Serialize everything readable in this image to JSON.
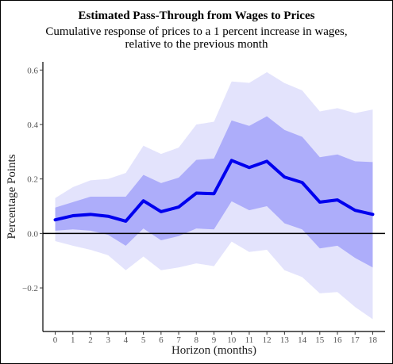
{
  "chart_data": {
    "type": "line",
    "title": "Estimated Pass-Through from Wages to Prices",
    "subtitle": "Cumulative response of prices to a 1 percent increase in wages, relative to the previous month",
    "xlabel": "Horizon (months)",
    "ylabel": "Percentage Points",
    "x": [
      0,
      1,
      2,
      3,
      4,
      5,
      6,
      7,
      8,
      9,
      10,
      11,
      12,
      13,
      14,
      15,
      16,
      17,
      18
    ],
    "xlim": [
      -0.7,
      18.7
    ],
    "ylim": [
      -0.36,
      0.63
    ],
    "yticks": [
      -0.2,
      0.0,
      0.2,
      0.4,
      0.6
    ],
    "yticklabels": [
      "−0.2",
      "0.0",
      "0.2",
      "0.4",
      "0.6"
    ],
    "grid": false,
    "series": [
      {
        "values": [
          0.05,
          0.065,
          0.07,
          0.063,
          0.045,
          0.12,
          0.08,
          0.097,
          0.148,
          0.146,
          0.268,
          0.242,
          0.265,
          0.207,
          0.187,
          0.115,
          0.123,
          0.085,
          0.07
        ]
      }
    ],
    "bands": {
      "inner_upper": [
        0.095,
        0.115,
        0.135,
        0.135,
        0.135,
        0.215,
        0.185,
        0.205,
        0.27,
        0.275,
        0.415,
        0.395,
        0.43,
        0.38,
        0.355,
        0.28,
        0.29,
        0.265,
        0.262
      ],
      "inner_lower": [
        0.01,
        0.015,
        0.01,
        -0.005,
        -0.045,
        0.018,
        -0.025,
        -0.01,
        0.018,
        0.015,
        0.118,
        0.085,
        0.1,
        0.037,
        0.015,
        -0.055,
        -0.045,
        -0.09,
        -0.125
      ],
      "outer_upper": [
        0.13,
        0.17,
        0.195,
        0.2,
        0.222,
        0.322,
        0.292,
        0.315,
        0.4,
        0.41,
        0.558,
        0.553,
        0.592,
        0.552,
        0.525,
        0.448,
        0.46,
        0.442,
        0.455
      ],
      "outer_lower": [
        -0.028,
        -0.045,
        -0.06,
        -0.08,
        -0.135,
        -0.085,
        -0.135,
        -0.125,
        -0.11,
        -0.12,
        -0.03,
        -0.068,
        -0.06,
        -0.135,
        -0.16,
        -0.22,
        -0.215,
        -0.27,
        -0.315
      ]
    },
    "colors": {
      "line": "#0000ee",
      "inner_band": "#adadfa",
      "outer_band": "#e3e3fc",
      "zero_line": "#000000"
    }
  }
}
